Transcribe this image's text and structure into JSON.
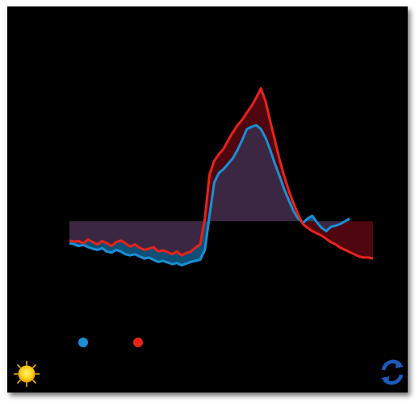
{
  "chart": {
    "title": "",
    "footer": ""
  },
  "chart_data": {
    "type": "area",
    "baseline": 0,
    "grid": false,
    "series": [
      {
        "name": "",
        "color": "#1a8fd6",
        "values": [
          -0.4,
          -0.42,
          -0.45,
          -0.43,
          -0.47,
          -0.5,
          -0.52,
          -0.49,
          -0.55,
          -0.57,
          -0.52,
          -0.55,
          -0.6,
          -0.62,
          -0.6,
          -0.64,
          -0.68,
          -0.66,
          -0.7,
          -0.74,
          -0.72,
          -0.75,
          -0.78,
          -0.76,
          -0.8,
          -0.77,
          -0.74,
          -0.72,
          -0.7,
          -0.52,
          0.1,
          0.7,
          0.88,
          0.95,
          1.05,
          1.15,
          1.3,
          1.48,
          1.68,
          1.72,
          1.75,
          1.68,
          1.52,
          1.3,
          1.05,
          0.82,
          0.58,
          0.38,
          0.18,
          0.05,
          -0.03,
          0.05,
          0.1,
          -0.02,
          -0.12,
          -0.18,
          -0.1,
          -0.08,
          -0.05,
          0.0,
          0.05
        ]
      },
      {
        "name": "",
        "color": "#e8231a",
        "values": [
          -0.35,
          -0.37,
          -0.36,
          -0.4,
          -0.33,
          -0.38,
          -0.42,
          -0.36,
          -0.4,
          -0.45,
          -0.38,
          -0.35,
          -0.4,
          -0.46,
          -0.42,
          -0.48,
          -0.52,
          -0.5,
          -0.47,
          -0.55,
          -0.53,
          -0.56,
          -0.6,
          -0.55,
          -0.62,
          -0.58,
          -0.55,
          -0.48,
          -0.42,
          0.05,
          0.85,
          1.1,
          1.22,
          1.32,
          1.48,
          1.62,
          1.75,
          1.85,
          1.98,
          2.1,
          2.25,
          2.42,
          2.18,
          1.82,
          1.48,
          1.12,
          0.82,
          0.55,
          0.32,
          0.12,
          -0.05,
          -0.12,
          -0.18,
          -0.22,
          -0.26,
          -0.32,
          -0.38,
          -0.42,
          -0.48,
          -0.52,
          -0.56,
          -0.6,
          -0.64,
          -0.66,
          -0.66,
          -0.68
        ]
      }
    ]
  },
  "icons": {
    "left": "sun-icon",
    "right": "refresh-icon"
  }
}
